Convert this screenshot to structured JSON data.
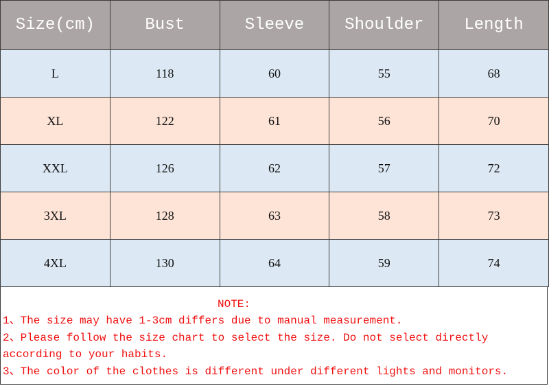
{
  "table": {
    "headers": [
      "Size(cm)",
      "Bust",
      "Sleeve",
      "Shoulder",
      "Length"
    ],
    "rows": [
      [
        "L",
        "118",
        "60",
        "55",
        "68"
      ],
      [
        "XL",
        "122",
        "61",
        "56",
        "70"
      ],
      [
        "XXL",
        "126",
        "62",
        "57",
        "72"
      ],
      [
        "3XL",
        "128",
        "63",
        "58",
        "73"
      ],
      [
        "4XL",
        "130",
        "64",
        "59",
        "74"
      ]
    ]
  },
  "colors": {
    "header": "#aba5a5",
    "row_blue": "#dce9f5",
    "row_peach": "#fde4d6",
    "note_text": "#f01010"
  },
  "notes": {
    "title": "NOTE:",
    "lines": [
      "1、The size may have 1-3cm differs due to manual measurement.",
      "2、Please follow the size chart to select the size. Do not select directly according to your habits.",
      "3、The color of the clothes is different under different lights and monitors."
    ]
  }
}
